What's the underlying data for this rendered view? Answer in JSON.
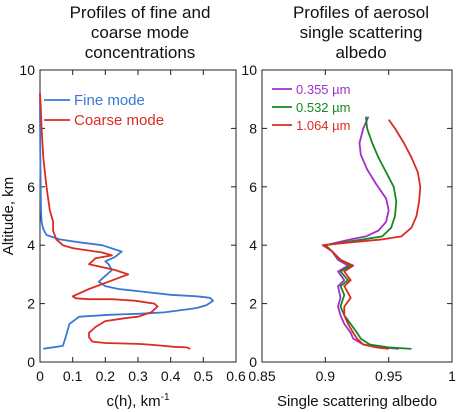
{
  "chart_data": [
    {
      "type": "line",
      "title": [
        "Profiles of fine and",
        "coarse mode",
        "concentrations"
      ],
      "xlabel": "c(h), km",
      "xlabel_sup": "-1",
      "ylabel": "Altitude, km",
      "xlim": [
        0,
        0.6
      ],
      "ylim": [
        0,
        10
      ],
      "xticks": [
        0,
        0.1,
        0.2,
        0.3,
        0.4,
        0.5,
        0.6
      ],
      "xtick_labels": [
        "0",
        "0.1",
        "0.2",
        "0.3",
        "0.4",
        "0.5",
        "0.6"
      ],
      "yticks": [
        0,
        2,
        4,
        6,
        8,
        10
      ],
      "ytick_labels": [
        "0",
        "2",
        "4",
        "6",
        "8",
        "10"
      ],
      "grid": false,
      "legend_position": "top-left",
      "series": [
        {
          "name": "Fine mode",
          "color": "#3a78d4",
          "points": [
            [
              0.01,
              0.45
            ],
            [
              0.02,
              0.47
            ],
            [
              0.07,
              0.55
            ],
            [
              0.08,
              0.9
            ],
            [
              0.09,
              1.3
            ],
            [
              0.12,
              1.55
            ],
            [
              0.22,
              1.62
            ],
            [
              0.3,
              1.65
            ],
            [
              0.38,
              1.7
            ],
            [
              0.45,
              1.8
            ],
            [
              0.48,
              1.85
            ],
            [
              0.51,
              1.95
            ],
            [
              0.53,
              2.1
            ],
            [
              0.52,
              2.2
            ],
            [
              0.48,
              2.25
            ],
            [
              0.4,
              2.3
            ],
            [
              0.32,
              2.4
            ],
            [
              0.24,
              2.5
            ],
            [
              0.2,
              2.6
            ],
            [
              0.18,
              2.75
            ],
            [
              0.2,
              2.95
            ],
            [
              0.22,
              3.15
            ],
            [
              0.21,
              3.35
            ],
            [
              0.2,
              3.45
            ],
            [
              0.23,
              3.6
            ],
            [
              0.25,
              3.78
            ],
            [
              0.19,
              4.0
            ],
            [
              0.12,
              4.1
            ],
            [
              0.06,
              4.2
            ],
            [
              0.02,
              4.35
            ],
            [
              0.01,
              4.55
            ],
            [
              0.005,
              4.8
            ],
            [
              0.003,
              5.2
            ],
            [
              0.002,
              6.0
            ],
            [
              0.001,
              7.0
            ],
            [
              0,
              8.5
            ],
            [
              0,
              9.2
            ]
          ]
        },
        {
          "name": "Coarse mode",
          "color": "#dc2b24",
          "points": [
            [
              0.46,
              0.45
            ],
            [
              0.45,
              0.5
            ],
            [
              0.41,
              0.52
            ],
            [
              0.38,
              0.55
            ],
            [
              0.33,
              0.6
            ],
            [
              0.3,
              0.62
            ],
            [
              0.2,
              0.65
            ],
            [
              0.16,
              0.7
            ],
            [
              0.15,
              0.85
            ],
            [
              0.15,
              1.0
            ],
            [
              0.17,
              1.2
            ],
            [
              0.2,
              1.4
            ],
            [
              0.26,
              1.5
            ],
            [
              0.3,
              1.55
            ],
            [
              0.34,
              1.7
            ],
            [
              0.36,
              1.9
            ],
            [
              0.35,
              2.0
            ],
            [
              0.29,
              2.1
            ],
            [
              0.22,
              2.15
            ],
            [
              0.15,
              2.15
            ],
            [
              0.11,
              2.18
            ],
            [
              0.1,
              2.25
            ],
            [
              0.15,
              2.5
            ],
            [
              0.21,
              2.75
            ],
            [
              0.27,
              3.0
            ],
            [
              0.23,
              3.15
            ],
            [
              0.19,
              3.25
            ],
            [
              0.15,
              3.35
            ],
            [
              0.17,
              3.55
            ],
            [
              0.22,
              3.65
            ],
            [
              0.19,
              3.75
            ],
            [
              0.13,
              3.85
            ],
            [
              0.1,
              3.9
            ],
            [
              0.07,
              4.0
            ],
            [
              0.05,
              4.2
            ],
            [
              0.04,
              4.5
            ],
            [
              0.04,
              4.8
            ],
            [
              0.03,
              5.2
            ],
            [
              0.02,
              6.0
            ],
            [
              0.01,
              7.0
            ],
            [
              0.005,
              8.0
            ],
            [
              0.002,
              8.8
            ],
            [
              0,
              9.2
            ]
          ]
        }
      ]
    },
    {
      "type": "line",
      "title": [
        "Profiles of aerosol",
        "single scattering",
        "albedo"
      ],
      "xlabel": "Single scattering albedo",
      "xlabel_sup": "",
      "ylabel": "",
      "xlim": [
        0.85,
        1.0
      ],
      "ylim": [
        0,
        10
      ],
      "xticks": [
        0.85,
        0.9,
        0.95,
        1.0
      ],
      "xtick_labels": [
        "0.85",
        "0.9",
        "0.95",
        "1"
      ],
      "yticks": [
        0,
        2,
        4,
        6,
        8,
        10
      ],
      "ytick_labels": [
        "0",
        "2",
        "4",
        "6",
        "8",
        "10"
      ],
      "grid": false,
      "legend_position": "top-left",
      "series": [
        {
          "name": "0.355 µm",
          "color": "#a030c8",
          "points": [
            [
              0.958,
              0.45
            ],
            [
              0.945,
              0.5
            ],
            [
              0.93,
              0.6
            ],
            [
              0.922,
              0.8
            ],
            [
              0.92,
              1.0
            ],
            [
              0.915,
              1.3
            ],
            [
              0.912,
              1.6
            ],
            [
              0.91,
              1.9
            ],
            [
              0.912,
              2.2
            ],
            [
              0.91,
              2.6
            ],
            [
              0.915,
              2.8
            ],
            [
              0.91,
              3.1
            ],
            [
              0.918,
              3.3
            ],
            [
              0.91,
              3.5
            ],
            [
              0.905,
              3.8
            ],
            [
              0.9,
              4.0
            ],
            [
              0.91,
              4.1
            ],
            [
              0.92,
              4.2
            ],
            [
              0.932,
              4.3
            ],
            [
              0.942,
              4.5
            ],
            [
              0.948,
              4.8
            ],
            [
              0.95,
              5.2
            ],
            [
              0.948,
              5.6
            ],
            [
              0.94,
              6.1
            ],
            [
              0.933,
              6.6
            ],
            [
              0.928,
              7.1
            ],
            [
              0.927,
              7.5
            ],
            [
              0.93,
              8.0
            ],
            [
              0.934,
              8.4
            ]
          ]
        },
        {
          "name": "0.532 µm",
          "color": "#138a1f",
          "points": [
            [
              0.968,
              0.45
            ],
            [
              0.95,
              0.5
            ],
            [
              0.935,
              0.6
            ],
            [
              0.928,
              0.8
            ],
            [
              0.925,
              1.0
            ],
            [
              0.92,
              1.3
            ],
            [
              0.915,
              1.6
            ],
            [
              0.912,
              1.9
            ],
            [
              0.915,
              2.3
            ],
            [
              0.912,
              2.6
            ],
            [
              0.918,
              2.8
            ],
            [
              0.912,
              3.1
            ],
            [
              0.92,
              3.3
            ],
            [
              0.912,
              3.5
            ],
            [
              0.905,
              3.8
            ],
            [
              0.9,
              4.0
            ],
            [
              0.915,
              4.1
            ],
            [
              0.93,
              4.2
            ],
            [
              0.945,
              4.3
            ],
            [
              0.952,
              4.6
            ],
            [
              0.955,
              5.0
            ],
            [
              0.956,
              5.5
            ],
            [
              0.954,
              6.0
            ],
            [
              0.948,
              6.5
            ],
            [
              0.942,
              7.0
            ],
            [
              0.937,
              7.5
            ],
            [
              0.933,
              8.0
            ],
            [
              0.932,
              8.4
            ]
          ]
        },
        {
          "name": "1.064 µm",
          "color": "#dc2b24",
          "points": [
            [
              0.95,
              0.45
            ],
            [
              0.94,
              0.5
            ],
            [
              0.93,
              0.6
            ],
            [
              0.925,
              0.8
            ],
            [
              0.922,
              1.0
            ],
            [
              0.918,
              1.3
            ],
            [
              0.915,
              1.6
            ],
            [
              0.915,
              1.9
            ],
            [
              0.92,
              2.2
            ],
            [
              0.915,
              2.6
            ],
            [
              0.92,
              2.8
            ],
            [
              0.915,
              3.1
            ],
            [
              0.922,
              3.3
            ],
            [
              0.912,
              3.5
            ],
            [
              0.905,
              3.8
            ],
            [
              0.898,
              4.0
            ],
            [
              0.92,
              4.1
            ],
            [
              0.945,
              4.2
            ],
            [
              0.96,
              4.3
            ],
            [
              0.968,
              4.6
            ],
            [
              0.972,
              5.0
            ],
            [
              0.974,
              5.5
            ],
            [
              0.975,
              6.0
            ],
            [
              0.973,
              6.5
            ],
            [
              0.968,
              7.0
            ],
            [
              0.962,
              7.5
            ],
            [
              0.955,
              8.0
            ],
            [
              0.95,
              8.3
            ]
          ]
        }
      ]
    }
  ]
}
